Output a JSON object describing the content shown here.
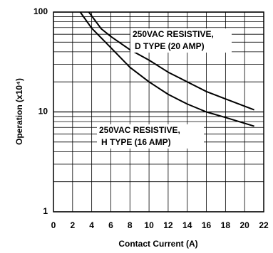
{
  "chart_data": {
    "type": "line",
    "xlabel": "Contact Current (A)",
    "ylabel": "Operation (x10⁴)",
    "xlim": [
      0,
      22
    ],
    "xticks": [
      0,
      2,
      4,
      6,
      8,
      10,
      12,
      14,
      16,
      18,
      20,
      22
    ],
    "ylim": [
      1,
      100
    ],
    "yticks": [
      1,
      10,
      100
    ],
    "log_y": true,
    "grid": true,
    "yminor_grid": [
      2,
      3,
      4,
      5,
      6,
      7,
      8,
      9,
      20,
      30,
      40,
      50,
      60,
      70,
      80,
      90
    ],
    "series": [
      {
        "name": "250VAC RESISTIVE, D TYPE (20 AMP)",
        "color": "#000000",
        "x": [
          3.7,
          5,
          6,
          8,
          10,
          12,
          14,
          16,
          18,
          21
        ],
        "values": [
          100,
          68,
          57,
          42,
          33,
          25,
          20,
          16,
          13.5,
          10.5
        ]
      },
      {
        "name": "250VAC RESISTIVE, H TYPE (16 AMP)",
        "color": "#000000",
        "x": [
          2.8,
          4,
          6,
          8,
          10,
          12,
          14,
          16,
          18,
          21
        ],
        "values": [
          100,
          69,
          44,
          28,
          20,
          15,
          12,
          10,
          8.8,
          7.2
        ]
      }
    ],
    "annotations": [
      {
        "lines": [
          "250VAC RESISTIVE,",
          "D TYPE (20 AMP)"
        ]
      },
      {
        "lines": [
          "250VAC RESISTIVE,",
          "H TYPE (16 AMP)"
        ]
      }
    ]
  }
}
